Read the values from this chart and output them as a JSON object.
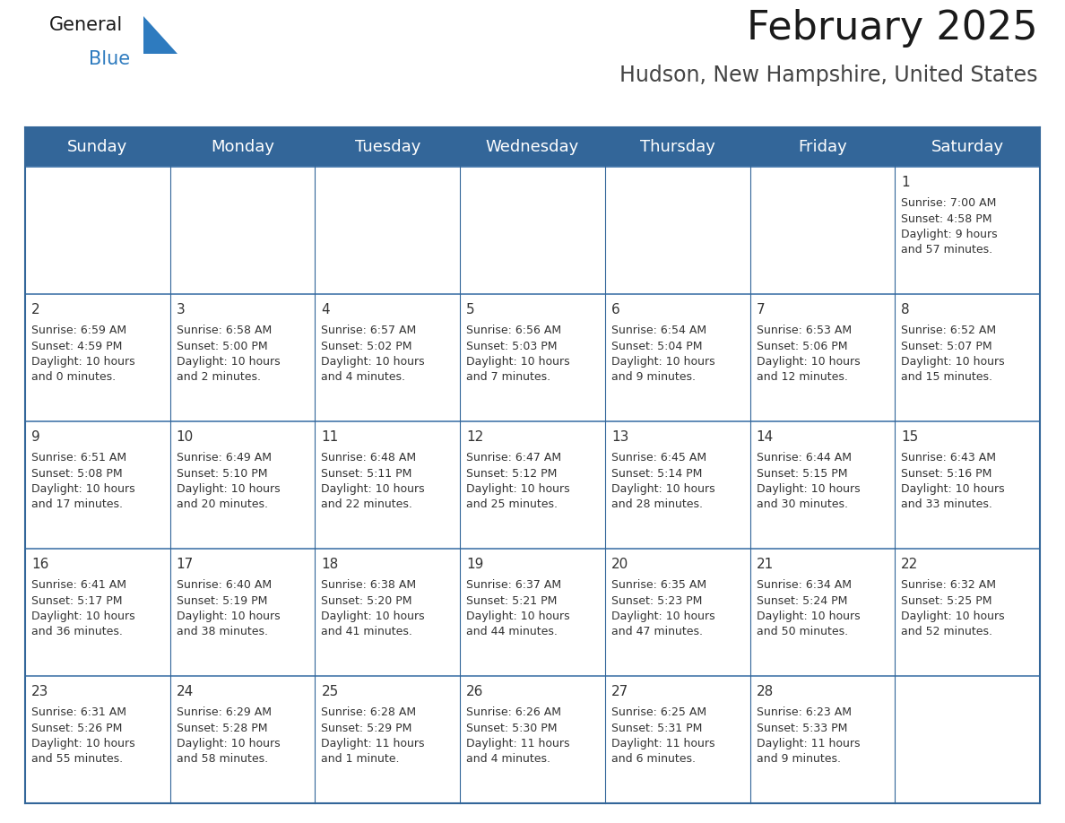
{
  "title": "February 2025",
  "subtitle": "Hudson, New Hampshire, United States",
  "header_bg": "#336699",
  "header_text_color": "#FFFFFF",
  "cell_bg": "#FFFFFF",
  "border_color": "#336699",
  "row_separator_color": "#4477AA",
  "text_color": "#333333",
  "day_headers": [
    "Sunday",
    "Monday",
    "Tuesday",
    "Wednesday",
    "Thursday",
    "Friday",
    "Saturday"
  ],
  "title_fontsize": 32,
  "subtitle_fontsize": 17,
  "header_fontsize": 13,
  "day_num_fontsize": 11,
  "cell_fontsize": 9,
  "logo_general_color": "#1a1a1a",
  "logo_blue_color": "#2E7BBF",
  "logo_triangle_color": "#2E7BBF",
  "weeks": [
    [
      {
        "day": null,
        "info": null
      },
      {
        "day": null,
        "info": null
      },
      {
        "day": null,
        "info": null
      },
      {
        "day": null,
        "info": null
      },
      {
        "day": null,
        "info": null
      },
      {
        "day": null,
        "info": null
      },
      {
        "day": "1",
        "info": "Sunrise: 7:00 AM\nSunset: 4:58 PM\nDaylight: 9 hours\nand 57 minutes."
      }
    ],
    [
      {
        "day": "2",
        "info": "Sunrise: 6:59 AM\nSunset: 4:59 PM\nDaylight: 10 hours\nand 0 minutes."
      },
      {
        "day": "3",
        "info": "Sunrise: 6:58 AM\nSunset: 5:00 PM\nDaylight: 10 hours\nand 2 minutes."
      },
      {
        "day": "4",
        "info": "Sunrise: 6:57 AM\nSunset: 5:02 PM\nDaylight: 10 hours\nand 4 minutes."
      },
      {
        "day": "5",
        "info": "Sunrise: 6:56 AM\nSunset: 5:03 PM\nDaylight: 10 hours\nand 7 minutes."
      },
      {
        "day": "6",
        "info": "Sunrise: 6:54 AM\nSunset: 5:04 PM\nDaylight: 10 hours\nand 9 minutes."
      },
      {
        "day": "7",
        "info": "Sunrise: 6:53 AM\nSunset: 5:06 PM\nDaylight: 10 hours\nand 12 minutes."
      },
      {
        "day": "8",
        "info": "Sunrise: 6:52 AM\nSunset: 5:07 PM\nDaylight: 10 hours\nand 15 minutes."
      }
    ],
    [
      {
        "day": "9",
        "info": "Sunrise: 6:51 AM\nSunset: 5:08 PM\nDaylight: 10 hours\nand 17 minutes."
      },
      {
        "day": "10",
        "info": "Sunrise: 6:49 AM\nSunset: 5:10 PM\nDaylight: 10 hours\nand 20 minutes."
      },
      {
        "day": "11",
        "info": "Sunrise: 6:48 AM\nSunset: 5:11 PM\nDaylight: 10 hours\nand 22 minutes."
      },
      {
        "day": "12",
        "info": "Sunrise: 6:47 AM\nSunset: 5:12 PM\nDaylight: 10 hours\nand 25 minutes."
      },
      {
        "day": "13",
        "info": "Sunrise: 6:45 AM\nSunset: 5:14 PM\nDaylight: 10 hours\nand 28 minutes."
      },
      {
        "day": "14",
        "info": "Sunrise: 6:44 AM\nSunset: 5:15 PM\nDaylight: 10 hours\nand 30 minutes."
      },
      {
        "day": "15",
        "info": "Sunrise: 6:43 AM\nSunset: 5:16 PM\nDaylight: 10 hours\nand 33 minutes."
      }
    ],
    [
      {
        "day": "16",
        "info": "Sunrise: 6:41 AM\nSunset: 5:17 PM\nDaylight: 10 hours\nand 36 minutes."
      },
      {
        "day": "17",
        "info": "Sunrise: 6:40 AM\nSunset: 5:19 PM\nDaylight: 10 hours\nand 38 minutes."
      },
      {
        "day": "18",
        "info": "Sunrise: 6:38 AM\nSunset: 5:20 PM\nDaylight: 10 hours\nand 41 minutes."
      },
      {
        "day": "19",
        "info": "Sunrise: 6:37 AM\nSunset: 5:21 PM\nDaylight: 10 hours\nand 44 minutes."
      },
      {
        "day": "20",
        "info": "Sunrise: 6:35 AM\nSunset: 5:23 PM\nDaylight: 10 hours\nand 47 minutes."
      },
      {
        "day": "21",
        "info": "Sunrise: 6:34 AM\nSunset: 5:24 PM\nDaylight: 10 hours\nand 50 minutes."
      },
      {
        "day": "22",
        "info": "Sunrise: 6:32 AM\nSunset: 5:25 PM\nDaylight: 10 hours\nand 52 minutes."
      }
    ],
    [
      {
        "day": "23",
        "info": "Sunrise: 6:31 AM\nSunset: 5:26 PM\nDaylight: 10 hours\nand 55 minutes."
      },
      {
        "day": "24",
        "info": "Sunrise: 6:29 AM\nSunset: 5:28 PM\nDaylight: 10 hours\nand 58 minutes."
      },
      {
        "day": "25",
        "info": "Sunrise: 6:28 AM\nSunset: 5:29 PM\nDaylight: 11 hours\nand 1 minute."
      },
      {
        "day": "26",
        "info": "Sunrise: 6:26 AM\nSunset: 5:30 PM\nDaylight: 11 hours\nand 4 minutes."
      },
      {
        "day": "27",
        "info": "Sunrise: 6:25 AM\nSunset: 5:31 PM\nDaylight: 11 hours\nand 6 minutes."
      },
      {
        "day": "28",
        "info": "Sunrise: 6:23 AM\nSunset: 5:33 PM\nDaylight: 11 hours\nand 9 minutes."
      },
      {
        "day": null,
        "info": null
      }
    ]
  ]
}
